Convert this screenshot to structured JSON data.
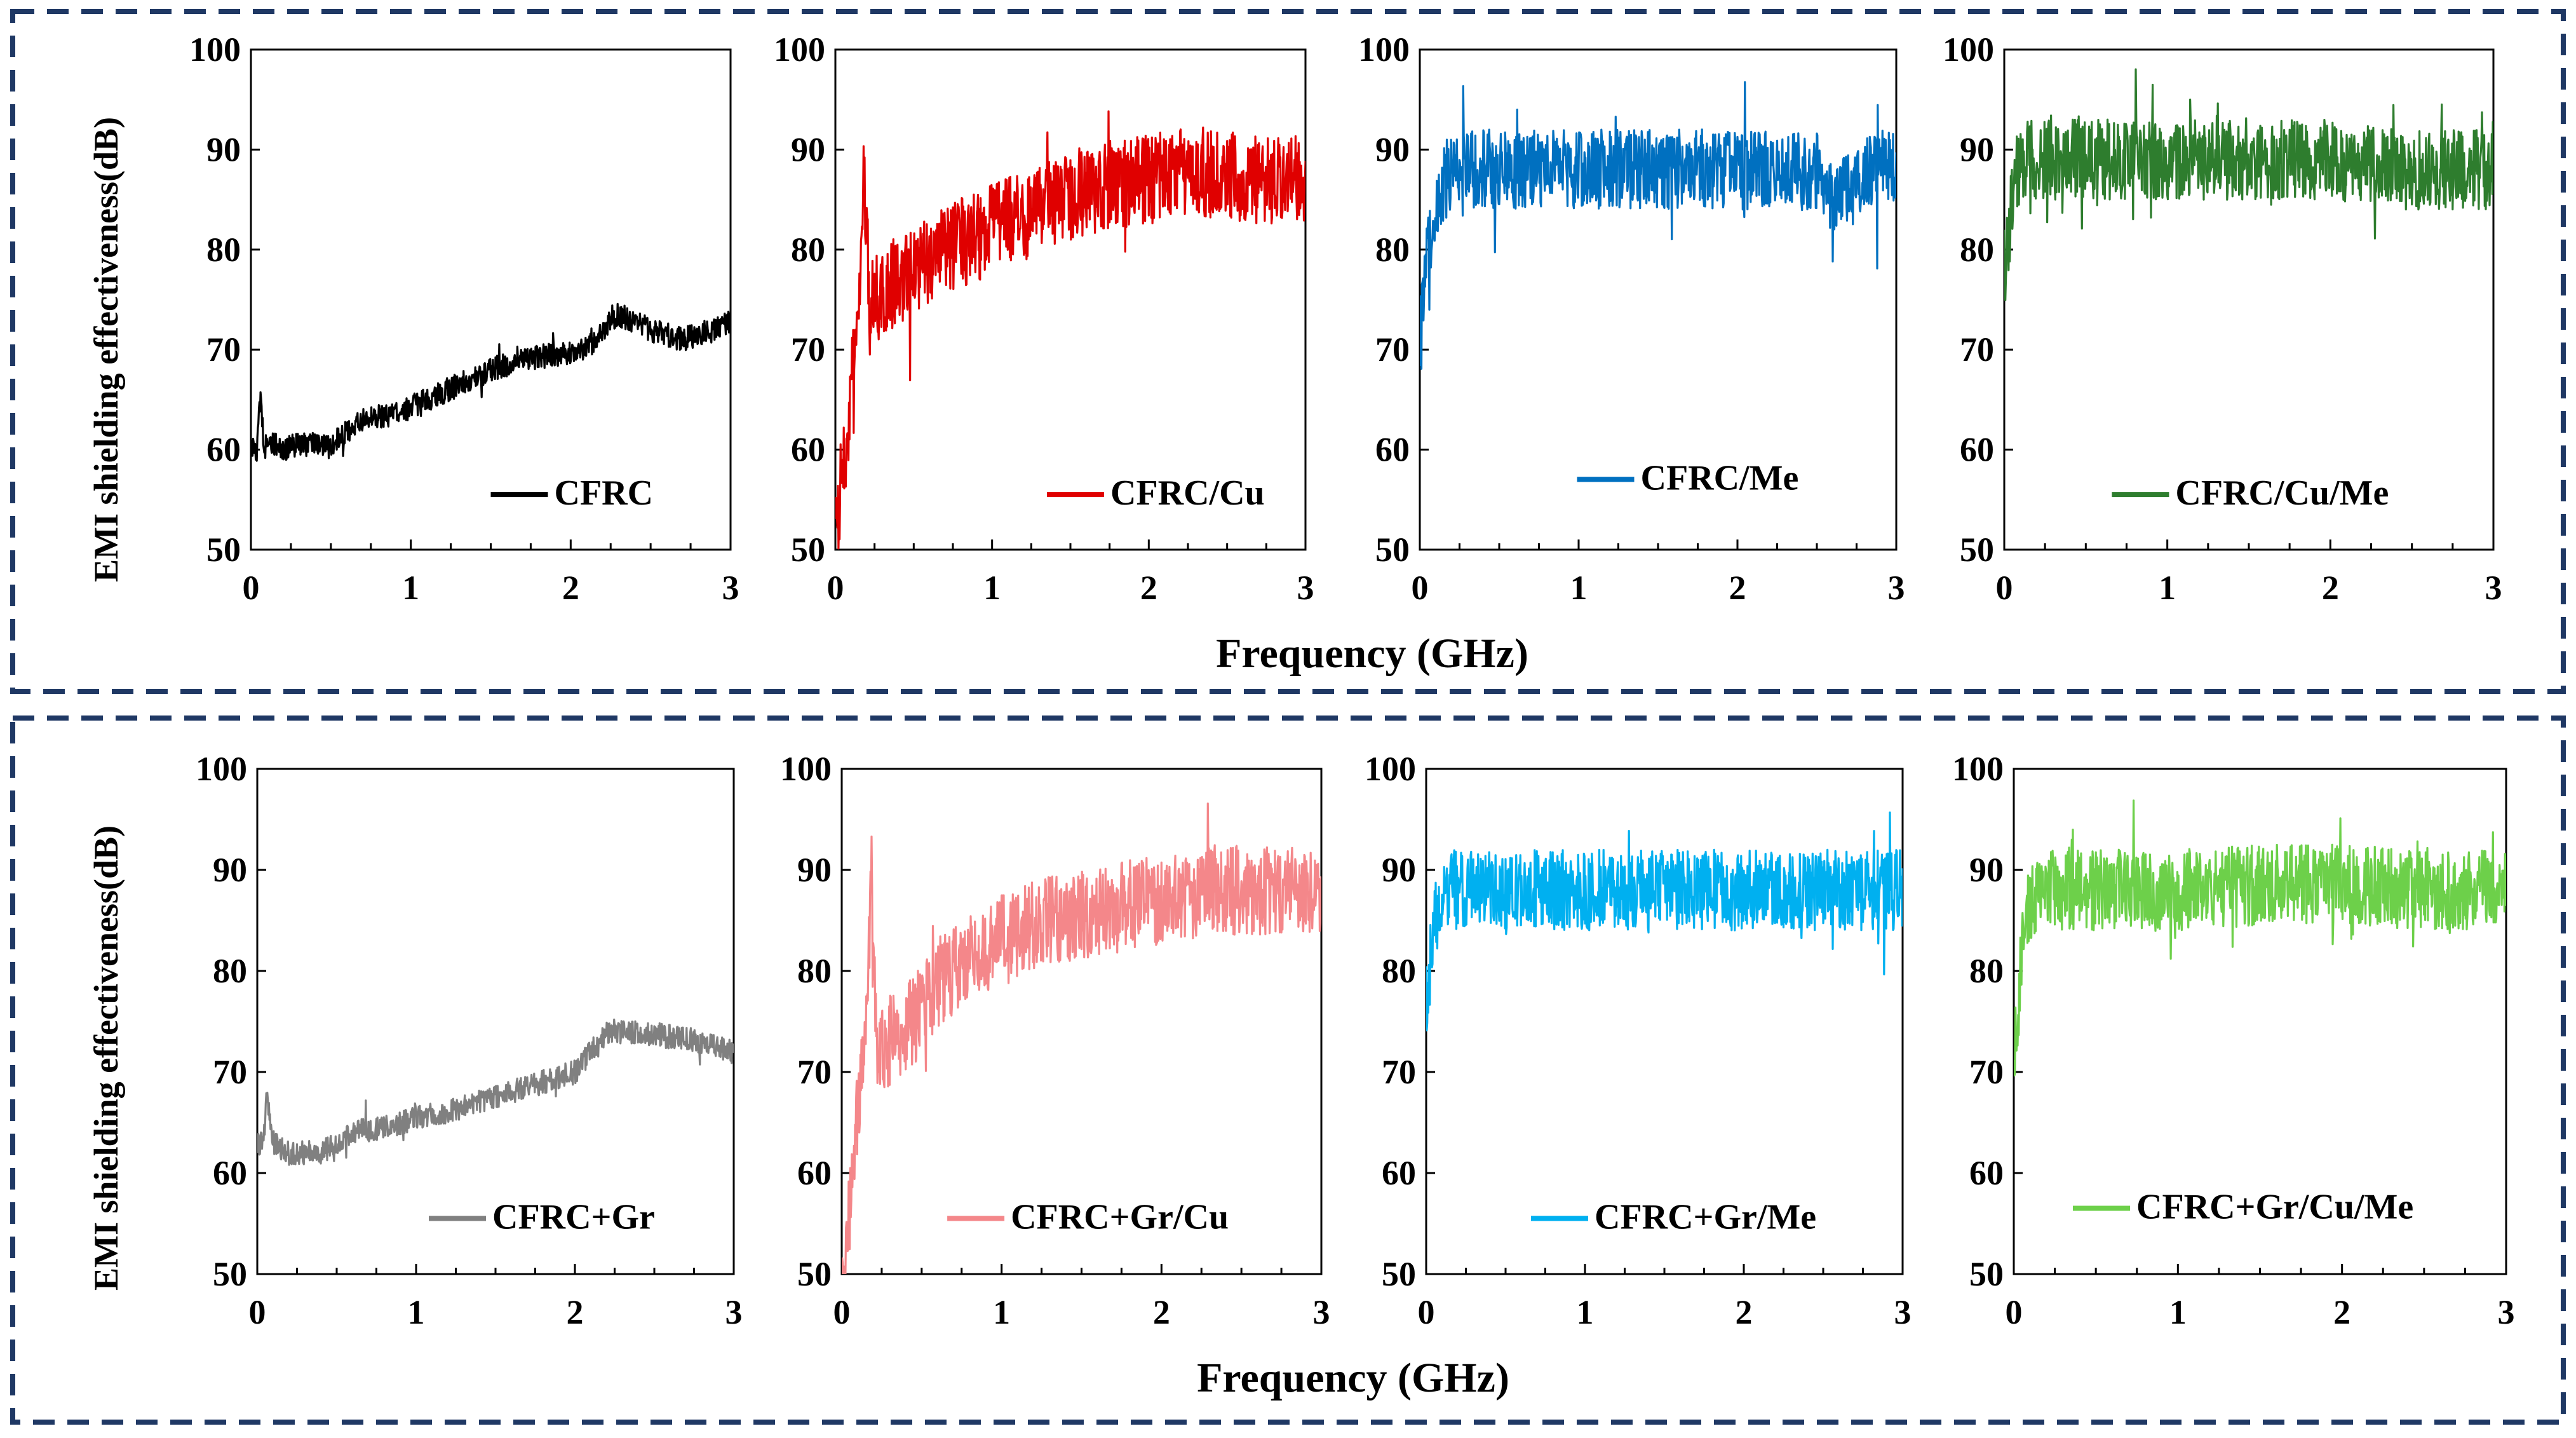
{
  "figure": {
    "ylabel": "EMI shielding effectiveness(dB)",
    "xlabel": "Frequency (GHz)",
    "xlim": [
      0,
      3
    ],
    "ylim": [
      50,
      100
    ],
    "xticks": [
      "0",
      "1",
      "2",
      "3"
    ],
    "yticks": [
      "50",
      "60",
      "70",
      "80",
      "90",
      "100"
    ]
  },
  "chart_data": [
    {
      "type": "line",
      "panel": "top-1",
      "legend": "CFRC",
      "color": "#000000",
      "xlim": [
        0,
        3
      ],
      "ylim": [
        50,
        100
      ],
      "xlabel": "Frequency (GHz)",
      "ylabel": "EMI shielding effectiveness(dB)",
      "trend_x": [
        0.01,
        0.04,
        0.06,
        0.08,
        0.12,
        0.2,
        0.3,
        0.5,
        0.7,
        0.9,
        1.1,
        1.3,
        1.5,
        1.7,
        1.9,
        2.1,
        2.2,
        2.3,
        2.5,
        2.7,
        2.9,
        3.0
      ],
      "trend_y": [
        60,
        60,
        66,
        60,
        61,
        60,
        60.5,
        60.5,
        63,
        63.5,
        65,
        66.5,
        68,
        69,
        69.5,
        70,
        72,
        73.5,
        72,
        71,
        72,
        73
      ],
      "noise_amplitude": 1.2
    },
    {
      "type": "line",
      "panel": "top-2",
      "legend": "CFRC/Cu",
      "color": "#e00000",
      "xlim": [
        0,
        3
      ],
      "ylim": [
        50,
        100
      ],
      "xlabel": "Frequency (GHz)",
      "ylabel": "EMI shielding effectiveness(dB)",
      "trend_x": [
        0.01,
        0.05,
        0.1,
        0.15,
        0.18,
        0.22,
        0.3,
        0.5,
        0.7,
        1.0,
        1.3,
        1.6,
        2.0,
        2.3,
        2.6,
        3.0
      ],
      "trend_y": [
        52,
        58,
        66,
        72,
        88,
        74,
        76,
        78,
        80,
        82,
        84,
        86,
        87,
        88,
        87,
        87
      ],
      "noise_amplitude": 4.5
    },
    {
      "type": "line",
      "panel": "top-3",
      "legend": "CFRC/Me",
      "color": "#0070c0",
      "xlim": [
        0,
        3
      ],
      "ylim": [
        50,
        100
      ],
      "xlabel": "Frequency (GHz)",
      "ylabel": "EMI shielding effectiveness(dB)",
      "trend_x": [
        0.01,
        0.05,
        0.1,
        0.15,
        0.3,
        0.6,
        1.0,
        1.5,
        2.0,
        2.5,
        2.6,
        2.8,
        3.0
      ],
      "trend_y": [
        72,
        80,
        85,
        87,
        88,
        88,
        88,
        88,
        88,
        88,
        85,
        87,
        89
      ],
      "noise_amplitude": 4.0
    },
    {
      "type": "line",
      "panel": "top-4",
      "legend": "CFRC/Cu/Me",
      "color": "#2e7d2e",
      "xlim": [
        0,
        3
      ],
      "ylim": [
        50,
        100
      ],
      "xlabel": "Frequency (GHz)",
      "ylabel": "EMI shielding effectiveness(dB)",
      "trend_x": [
        0.01,
        0.04,
        0.08,
        0.15,
        0.4,
        0.8,
        1.2,
        1.6,
        2.0,
        2.4,
        2.8,
        3.0
      ],
      "trend_y": [
        78,
        84,
        88,
        89,
        89,
        89,
        89,
        89,
        89,
        88,
        88,
        88
      ],
      "noise_amplitude": 4.0
    },
    {
      "type": "line",
      "panel": "bottom-1",
      "legend": "CFRC+Gr",
      "color": "#808080",
      "xlim": [
        0,
        3
      ],
      "ylim": [
        50,
        100
      ],
      "xlabel": "Frequency (GHz)",
      "ylabel": "EMI shielding effectiveness(dB)",
      "trend_x": [
        0.01,
        0.04,
        0.06,
        0.1,
        0.2,
        0.4,
        0.6,
        0.8,
        1.0,
        1.2,
        1.4,
        1.6,
        1.8,
        2.0,
        2.1,
        2.2,
        2.4,
        2.6,
        2.8,
        3.0
      ],
      "trend_y": [
        63,
        63,
        68,
        63,
        62,
        62,
        64,
        64.5,
        65.5,
        66,
        67,
        68,
        69,
        70,
        72,
        74,
        74,
        73.5,
        73,
        72
      ],
      "noise_amplitude": 1.2
    },
    {
      "type": "line",
      "panel": "bottom-2",
      "legend": "CFRC+Gr/Cu",
      "color": "#f4878a",
      "xlim": [
        0,
        3
      ],
      "ylim": [
        50,
        100
      ],
      "xlabel": "Frequency (GHz)",
      "ylabel": "EMI shielding effectiveness(dB)",
      "trend_x": [
        0.01,
        0.05,
        0.1,
        0.15,
        0.18,
        0.22,
        0.3,
        0.5,
        0.6,
        0.8,
        1.0,
        1.3,
        1.6,
        2.0,
        2.3,
        2.6,
        3.0
      ],
      "trend_y": [
        50,
        56,
        66,
        72,
        88,
        72,
        73,
        76,
        79,
        81,
        83,
        85,
        86,
        87,
        88,
        88,
        88
      ],
      "noise_amplitude": 4.5
    },
    {
      "type": "line",
      "panel": "bottom-3",
      "legend": "CFRC+Gr/Me",
      "color": "#00b0f0",
      "xlim": [
        0,
        3
      ],
      "ylim": [
        50,
        100
      ],
      "xlabel": "Frequency (GHz)",
      "ylabel": "EMI shielding effectiveness(dB)",
      "trend_x": [
        0.01,
        0.04,
        0.08,
        0.15,
        0.5,
        1.0,
        1.5,
        2.0,
        2.5,
        3.0
      ],
      "trend_y": [
        78,
        83,
        87,
        88,
        88,
        88,
        88,
        88,
        88,
        88
      ],
      "noise_amplitude": 4.0
    },
    {
      "type": "line",
      "panel": "bottom-4",
      "legend": "CFRC+Gr/Cu/Me",
      "color": "#6dd04a",
      "xlim": [
        0,
        3
      ],
      "ylim": [
        50,
        100
      ],
      "xlabel": "Frequency (GHz)",
      "ylabel": "EMI shielding effectiveness(dB)",
      "trend_x": [
        0.01,
        0.04,
        0.08,
        0.15,
        0.5,
        1.0,
        1.5,
        2.0,
        2.5,
        3.0
      ],
      "trend_y": [
        73,
        80,
        86,
        88,
        88,
        88,
        88.5,
        88.5,
        88,
        88
      ],
      "noise_amplitude": 4.0
    }
  ]
}
